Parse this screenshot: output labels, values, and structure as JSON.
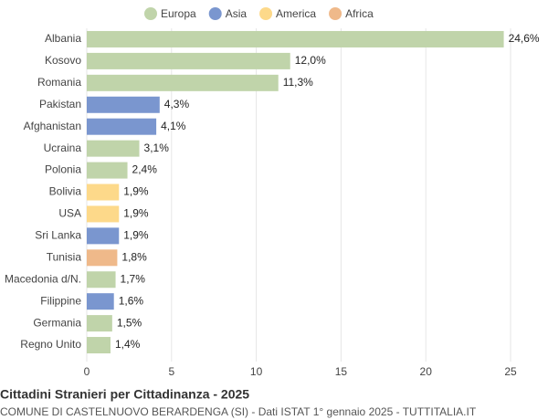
{
  "chart_data": {
    "type": "bar",
    "orientation": "horizontal",
    "title": "Cittadini Stranieri per Cittadinanza - 2025",
    "subtitle": "COMUNE DI CASTELNUOVO BERARDENGA (SI) - Dati ISTAT 1° gennaio 2025 - TUTTITALIA.IT",
    "categories": [
      "Albania",
      "Kosovo",
      "Romania",
      "Pakistan",
      "Afghanistan",
      "Ucraina",
      "Polonia",
      "Bolivia",
      "USA",
      "Sri Lanka",
      "Tunisia",
      "Macedonia d/N.",
      "Filippine",
      "Germania",
      "Regno Unito"
    ],
    "series": [
      {
        "name": "Europa",
        "color": "#c0d4aa",
        "values": [
          24.6,
          12.0,
          11.3,
          null,
          null,
          3.1,
          2.4,
          null,
          null,
          null,
          null,
          1.7,
          null,
          1.5,
          1.4
        ],
        "value_labels": [
          "24,6%",
          "12,0%",
          "11,3%",
          null,
          null,
          "3,1%",
          "2,4%",
          null,
          null,
          null,
          null,
          "1,7%",
          null,
          "1,5%",
          "1,4%"
        ]
      },
      {
        "name": "Asia",
        "color": "#7a96cf",
        "values": [
          null,
          null,
          null,
          4.3,
          4.1,
          null,
          null,
          null,
          null,
          1.9,
          null,
          null,
          1.6,
          null,
          null
        ],
        "value_labels": [
          null,
          null,
          null,
          "4,3%",
          "4,1%",
          null,
          null,
          null,
          null,
          "1,9%",
          null,
          null,
          "1,6%",
          null,
          null
        ]
      },
      {
        "name": "America",
        "color": "#fdd98a",
        "values": [
          null,
          null,
          null,
          null,
          null,
          null,
          null,
          1.9,
          1.9,
          null,
          null,
          null,
          null,
          null,
          null
        ],
        "value_labels": [
          null,
          null,
          null,
          null,
          null,
          null,
          null,
          "1,9%",
          "1,9%",
          null,
          null,
          null,
          null,
          null,
          null
        ]
      },
      {
        "name": "Africa",
        "color": "#efb98a",
        "values": [
          null,
          null,
          null,
          null,
          null,
          null,
          null,
          null,
          null,
          null,
          1.8,
          null,
          null,
          null,
          null
        ],
        "value_labels": [
          null,
          null,
          null,
          null,
          null,
          null,
          null,
          null,
          null,
          null,
          "1,8%",
          null,
          null,
          null,
          null
        ]
      }
    ],
    "xlim": [
      0,
      25
    ],
    "xticks": [
      0,
      5,
      10,
      15,
      20,
      25
    ],
    "grid": true,
    "legend": "top"
  }
}
